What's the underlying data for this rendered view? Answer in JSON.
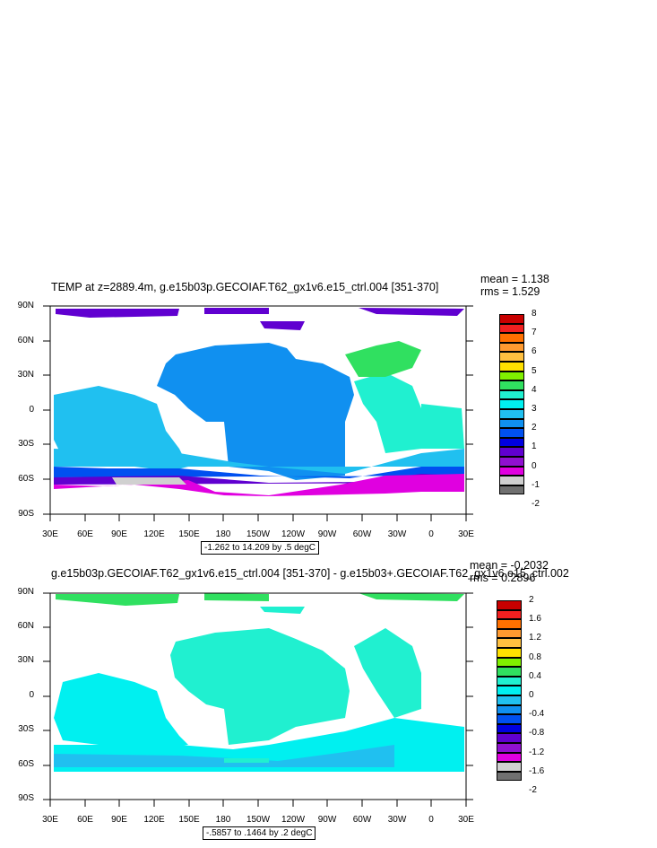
{
  "panel1": {
    "title": "TEMP at z=2889.4m, g.e15b03p.GECOIAF.T62_gx1v6.e15_ctrl.004 [351-370]",
    "mean": "mean = 1.138",
    "rms": "rms = 1.529",
    "range": "-1.262 to 14.209 by .5 degC",
    "legend_labels": [
      "8",
      "7",
      "6",
      "5",
      "4",
      "3",
      "2",
      "1",
      "0",
      "-1",
      "-2"
    ],
    "legend_colors": [
      "#c80000",
      "#f02020",
      "#ff7000",
      "#ff9a30",
      "#ffc040",
      "#ffe000",
      "#80f000",
      "#30e060",
      "#20f0d0",
      "#00f0f0",
      "#20c0f0",
      "#1090f0",
      "#0050f0",
      "#0000e0",
      "#6000d0",
      "#9010d0",
      "#e000e0",
      "#d0d0d0",
      "#707070"
    ]
  },
  "panel2": {
    "title": "g.e15b03p.GECOIAF.T62_gx1v6.e15_ctrl.004 [351-370] - g.e15b03+.GECOIAF.T62_gx1v6.e15_ctrl.002",
    "mean": "mean = -0.2032",
    "rms": "rms = 0.2896",
    "range": "-.5857 to .1464 by .2 degC",
    "legend_labels": [
      "2",
      "1.6",
      "1.2",
      "0.8",
      "0.4",
      "0",
      "-0.4",
      "-0.8",
      "-1.2",
      "-1.6",
      "-2"
    ],
    "legend_colors": [
      "#c80000",
      "#f02020",
      "#ff7000",
      "#ff9a30",
      "#ffc040",
      "#ffe000",
      "#80f000",
      "#30e060",
      "#20f0d0",
      "#00f0f0",
      "#20c0f0",
      "#1090f0",
      "#0050f0",
      "#0000e0",
      "#6000d0",
      "#9010d0",
      "#e000e0",
      "#d0d0d0",
      "#707070"
    ]
  },
  "lat_labels": [
    "90N",
    "60N",
    "30N",
    "0",
    "30S",
    "60S",
    "90S"
  ],
  "lon_labels": [
    "30E",
    "60E",
    "90E",
    "120E",
    "150E",
    "180",
    "150W",
    "120W",
    "90W",
    "60W",
    "30W",
    "0",
    "30E"
  ]
}
